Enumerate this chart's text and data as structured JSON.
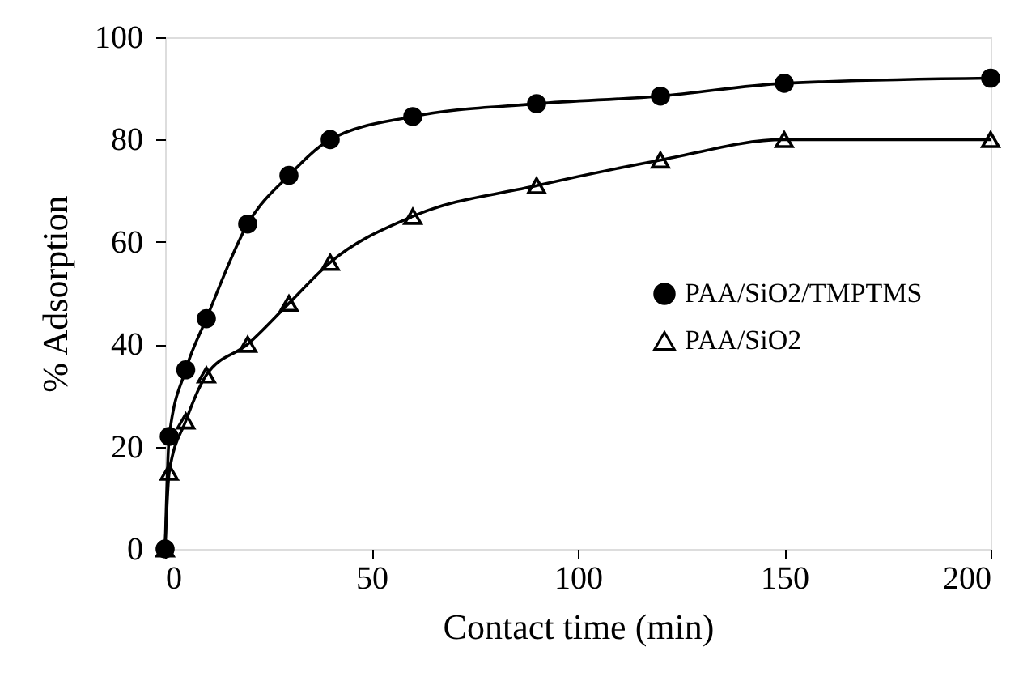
{
  "chart_data": {
    "type": "line",
    "xlabel": "Contact time (min)",
    "ylabel": "% Adsorption",
    "x": [
      0,
      1,
      5,
      10,
      20,
      30,
      40,
      60,
      90,
      120,
      150,
      200
    ],
    "series": [
      {
        "name": "PAA/SiO2/TMPTMS",
        "color": "#000000",
        "marker": "circle",
        "values": [
          0,
          22,
          35,
          45,
          63.5,
          73,
          80,
          84.5,
          87,
          88.5,
          91,
          92
        ]
      },
      {
        "name": "PAA/SiO2",
        "color": "#000000",
        "marker": "triangle",
        "values": [
          0,
          15,
          25,
          34,
          40,
          48,
          56,
          65,
          71,
          76,
          80,
          80
        ]
      }
    ],
    "xlim": [
      0,
      200
    ],
    "xticks": [
      0,
      50,
      100,
      150,
      200
    ],
    "ylim": [
      0,
      100
    ],
    "yticks": [
      0,
      20,
      40,
      60,
      80,
      100
    ],
    "grid": false,
    "legend": "right",
    "line_style": "solid"
  }
}
